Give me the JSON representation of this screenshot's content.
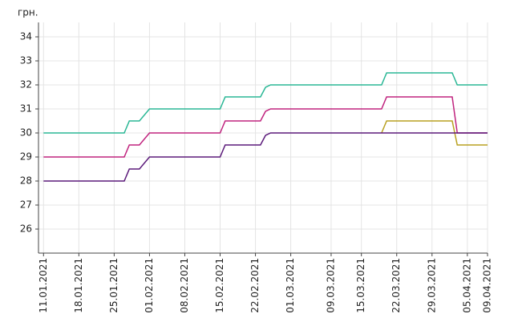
{
  "chart_data": {
    "type": "line",
    "y_label": "грн.",
    "x": [
      "11.01.2021",
      "27.01.2021",
      "28.01.2021",
      "30.01.2021",
      "01.02.2021",
      "15.02.2021",
      "16.02.2021",
      "23.02.2021",
      "24.02.2021",
      "25.02.2021",
      "19.03.2021",
      "20.03.2021",
      "02.04.2021",
      "03.04.2021",
      "09.04.2021"
    ],
    "series": [
      {
        "color": "#2ab795",
        "values": [
          30,
          30,
          30.5,
          30.5,
          31,
          31,
          31.5,
          31.5,
          31.9,
          32,
          32,
          32.5,
          32.5,
          32,
          32
        ]
      },
      {
        "color": "#c0237e",
        "values": [
          29,
          29,
          29.5,
          29.5,
          30,
          30,
          30.5,
          30.5,
          30.9,
          31,
          31,
          31.5,
          31.5,
          30,
          30
        ]
      },
      {
        "color": "#b8a020",
        "values": [
          null,
          null,
          null,
          null,
          null,
          null,
          null,
          null,
          null,
          null,
          30,
          30.5,
          30.5,
          29.5,
          29.5
        ]
      },
      {
        "color": "#5b1a7a",
        "values": [
          28,
          28,
          28.5,
          28.5,
          29,
          29,
          29.5,
          29.5,
          29.9,
          30,
          30,
          30,
          30,
          30,
          30
        ]
      }
    ],
    "xlim": [
      "10.01.2021",
      "09.04.2021"
    ],
    "xticks": [
      "11.01.2021",
      "18.01.2021",
      "25.01.2021",
      "01.02.2021",
      "08.02.2021",
      "15.02.2021",
      "22.02.2021",
      "01.03.2021",
      "09.03.2021",
      "15.03.2021",
      "22.03.2021",
      "29.03.2021",
      "05.04.2021",
      "09.04.2021"
    ],
    "ylim": [
      25,
      34.6
    ],
    "yticks": [
      26,
      27,
      28,
      29,
      30,
      31,
      32,
      33,
      34
    ],
    "grid": true
  }
}
